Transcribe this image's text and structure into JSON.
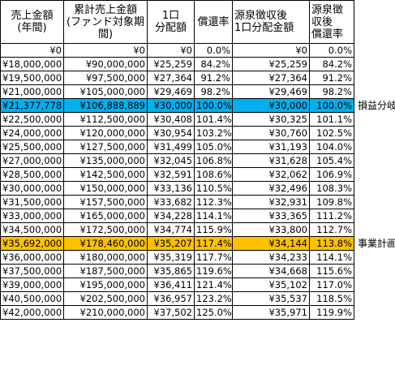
{
  "headers": [
    "売上金額\n(年間)",
    "累計売上金額\n(ファンド対象期間)",
    "1口\n分配額",
    "償還率",
    "源泉徴収後\n1口分配金額",
    "源泉徴収後\n償還率"
  ],
  "rows": [
    {
      "c": [
        "¥0",
        "¥0",
        "¥0",
        "0.0%",
        "¥0",
        "0.0%"
      ]
    },
    {
      "c": [
        "¥18,000,000",
        "¥90,000,000",
        "¥25,259",
        "84.2%",
        "¥25,259",
        "84.2%"
      ]
    },
    {
      "c": [
        "¥19,500,000",
        "¥97,500,000",
        "¥27,364",
        "91.2%",
        "¥27,364",
        "91.2%"
      ]
    },
    {
      "c": [
        "¥21,000,000",
        "¥105,000,000",
        "¥29,469",
        "98.2%",
        "¥29,469",
        "98.2%"
      ]
    },
    {
      "c": [
        "¥21,377,778",
        "¥106,888,889",
        "¥30,000",
        "100.0%",
        "¥30,000",
        "100.0%"
      ],
      "highlight": "#00b0f0",
      "label": "損益分岐"
    },
    {
      "c": [
        "¥22,500,000",
        "¥112,500,000",
        "¥30,408",
        "101.4%",
        "¥30,325",
        "101.1%"
      ]
    },
    {
      "c": [
        "¥24,000,000",
        "¥120,000,000",
        "¥30,954",
        "103.2%",
        "¥30,760",
        "102.5%"
      ]
    },
    {
      "c": [
        "¥25,500,000",
        "¥127,500,000",
        "¥31,499",
        "105.0%",
        "¥31,193",
        "104.0%"
      ]
    },
    {
      "c": [
        "¥27,000,000",
        "¥135,000,000",
        "¥32,045",
        "106.8%",
        "¥31,628",
        "105.4%"
      ]
    },
    {
      "c": [
        "¥28,500,000",
        "¥142,500,000",
        "¥32,591",
        "108.6%",
        "¥32,062",
        "106.9%"
      ]
    },
    {
      "c": [
        "¥30,000,000",
        "¥150,000,000",
        "¥33,136",
        "110.5%",
        "¥32,496",
        "108.3%"
      ]
    },
    {
      "c": [
        "¥31,500,000",
        "¥157,500,000",
        "¥33,682",
        "112.3%",
        "¥32,931",
        "109.8%"
      ]
    },
    {
      "c": [
        "¥33,000,000",
        "¥165,000,000",
        "¥34,228",
        "114.1%",
        "¥33,365",
        "111.2%"
      ]
    },
    {
      "c": [
        "¥34,500,000",
        "¥172,500,000",
        "¥34,774",
        "115.9%",
        "¥33,800",
        "112.7%"
      ]
    },
    {
      "c": [
        "¥35,692,000",
        "¥178,460,000",
        "¥35,207",
        "117.4%",
        "¥34,144",
        "113.8%"
      ],
      "highlight": "#ffc000",
      "label": "事業計画"
    },
    {
      "c": [
        "¥36,000,000",
        "¥180,000,000",
        "¥35,319",
        "117.7%",
        "¥34,233",
        "114.1%"
      ]
    },
    {
      "c": [
        "¥37,500,000",
        "¥187,500,000",
        "¥35,865",
        "119.6%",
        "¥34,668",
        "115.6%"
      ]
    },
    {
      "c": [
        "¥39,000,000",
        "¥195,000,000",
        "¥36,411",
        "121.4%",
        "¥35,102",
        "117.0%"
      ]
    },
    {
      "c": [
        "¥40,500,000",
        "¥202,500,000",
        "¥36,957",
        "123.2%",
        "¥35,537",
        "118.5%"
      ]
    },
    {
      "c": [
        "¥42,000,000",
        "¥210,000,000",
        "¥37,502",
        "125.0%",
        "¥35,971",
        "119.9%"
      ]
    }
  ]
}
